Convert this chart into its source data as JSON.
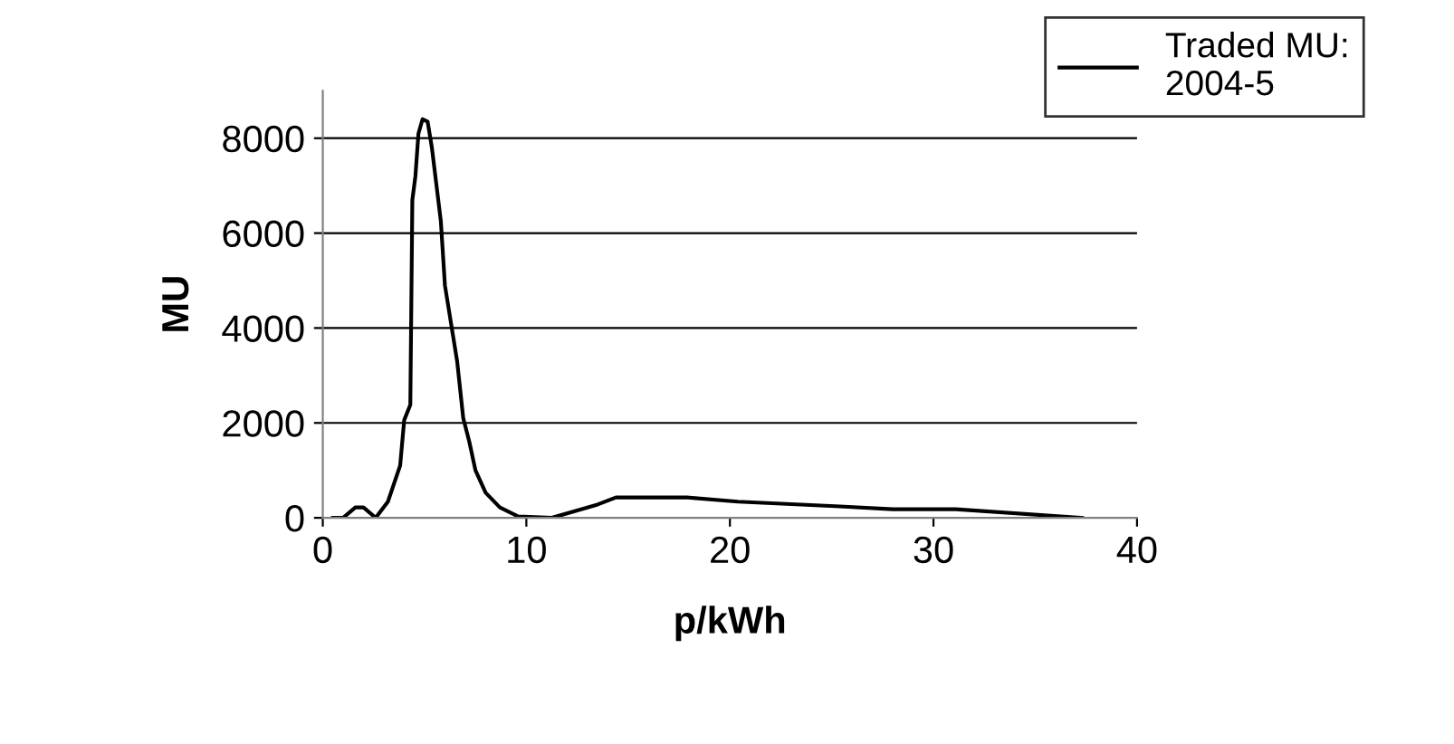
{
  "chart_data": {
    "type": "line",
    "xlabel": "p/kWh",
    "ylabel": "MU",
    "xlim": [
      0,
      40
    ],
    "xticks": [
      0,
      10,
      20,
      30,
      40
    ],
    "ylim": [
      0,
      9000
    ],
    "yticks": [
      0,
      2000,
      4000,
      6000,
      8000
    ],
    "grid": "y",
    "legend": "top right",
    "marker": "none",
    "line_style": "solid",
    "series": [
      {
        "name": "Traded MU:\n2004-5",
        "color": "#000000",
        "x": [
          0.5,
          1.0,
          1.6,
          2.0,
          2.6,
          3.2,
          3.8,
          4.0,
          4.3,
          4.4,
          4.55,
          4.7,
          4.9,
          5.15,
          5.36,
          5.8,
          6.0,
          6.6,
          6.9,
          7.2,
          7.5,
          8.0,
          8.7,
          9.6,
          11.25,
          13.5,
          14.4,
          17.9,
          20.4,
          25.4,
          28.0,
          31.1,
          37.3
        ],
        "values": [
          0,
          0,
          220,
          220,
          0,
          340,
          1100,
          2060,
          2380,
          6700,
          7200,
          8100,
          8400,
          8350,
          7800,
          6250,
          4900,
          3300,
          2100,
          1600,
          1000,
          530,
          220,
          30,
          0,
          280,
          430,
          430,
          340,
          240,
          180,
          180,
          0
        ]
      }
    ]
  }
}
